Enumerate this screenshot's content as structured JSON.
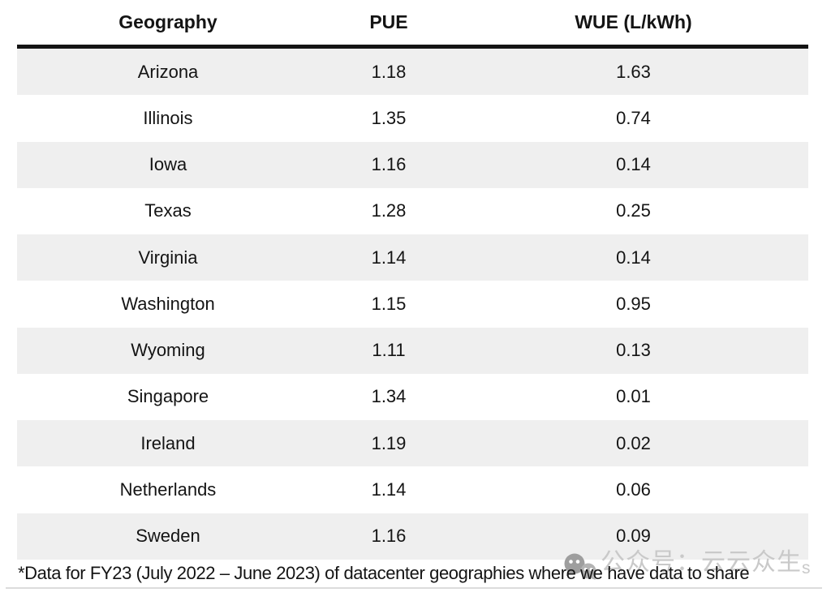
{
  "table": {
    "columns": [
      "Geography",
      "PUE",
      "WUE (L/kWh)"
    ],
    "rows": [
      {
        "geography": "Arizona",
        "pue": "1.18",
        "wue": "1.63"
      },
      {
        "geography": "Illinois",
        "pue": "1.35",
        "wue": "0.74"
      },
      {
        "geography": "Iowa",
        "pue": "1.16",
        "wue": "0.14"
      },
      {
        "geography": "Texas",
        "pue": "1.28",
        "wue": "0.25"
      },
      {
        "geography": "Virginia",
        "pue": "1.14",
        "wue": "0.14"
      },
      {
        "geography": "Washington",
        "pue": "1.15",
        "wue": "0.95"
      },
      {
        "geography": "Wyoming",
        "pue": "1.11",
        "wue": "0.13"
      },
      {
        "geography": "Singapore",
        "pue": "1.34",
        "wue": "0.01"
      },
      {
        "geography": "Ireland",
        "pue": "1.19",
        "wue": "0.02"
      },
      {
        "geography": "Netherlands",
        "pue": "1.14",
        "wue": "0.06"
      },
      {
        "geography": "Sweden",
        "pue": "1.16",
        "wue": "0.09"
      }
    ]
  },
  "footnote": "*Data for FY23 (July 2022 – June 2023) of datacenter geographies where we have data to share",
  "watermark": {
    "icon": "chat-bubbles-icon",
    "text": "公众号：云云众生",
    "suffix": "s"
  },
  "colors": {
    "row_stripe": "#efefef",
    "header_rule": "#141414",
    "text": "#141414",
    "bottom_rule": "#dcdcdc",
    "watermark_text": "#c9c9c9",
    "watermark_icon_large": "#9e9e9e",
    "watermark_icon_small": "#b3b3b3"
  },
  "chart_data": {
    "type": "table",
    "title": "",
    "categories": [
      "Arizona",
      "Illinois",
      "Iowa",
      "Texas",
      "Virginia",
      "Washington",
      "Wyoming",
      "Singapore",
      "Ireland",
      "Netherlands",
      "Sweden"
    ],
    "series": [
      {
        "name": "PUE",
        "values": [
          1.18,
          1.35,
          1.16,
          1.28,
          1.14,
          1.15,
          1.11,
          1.34,
          1.19,
          1.14,
          1.16
        ]
      },
      {
        "name": "WUE (L/kWh)",
        "values": [
          1.63,
          0.74,
          0.14,
          0.25,
          0.14,
          0.95,
          0.13,
          0.01,
          0.02,
          0.06,
          0.09
        ]
      }
    ]
  }
}
